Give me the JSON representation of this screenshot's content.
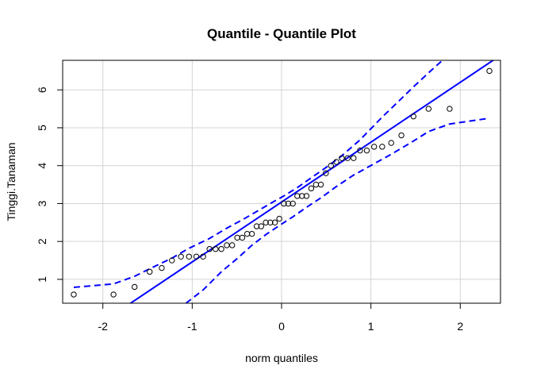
{
  "chart_data": {
    "type": "scatter",
    "title": "Quantile - Quantile Plot",
    "xlabel": "norm quantiles",
    "ylabel": "Tinggi.Tanaman",
    "xlim": [
      -2.45,
      2.45
    ],
    "ylim": [
      0.37,
      6.78
    ],
    "xticks": [
      -2,
      -1,
      0,
      1,
      2
    ],
    "yticks": [
      1,
      2,
      3,
      4,
      5,
      6
    ],
    "grid": true,
    "colors": {
      "reference": "#0000ff",
      "points": "#000000",
      "grid": "#d3d3d3"
    },
    "points": {
      "x": [
        -2.326,
        -1.881,
        -1.645,
        -1.476,
        -1.341,
        -1.227,
        -1.126,
        -1.036,
        -0.954,
        -0.878,
        -0.806,
        -0.739,
        -0.674,
        -0.613,
        -0.553,
        -0.496,
        -0.44,
        -0.385,
        -0.332,
        -0.279,
        -0.228,
        -0.176,
        -0.126,
        -0.075,
        -0.025,
        0.025,
        0.075,
        0.126,
        0.176,
        0.228,
        0.279,
        0.332,
        0.385,
        0.44,
        0.496,
        0.553,
        0.613,
        0.674,
        0.739,
        0.806,
        0.878,
        0.954,
        1.036,
        1.126,
        1.227,
        1.341,
        1.476,
        1.645,
        1.881,
        2.326
      ],
      "y": [
        0.6,
        0.6,
        0.8,
        1.2,
        1.3,
        1.5,
        1.6,
        1.6,
        1.6,
        1.6,
        1.8,
        1.8,
        1.8,
        1.9,
        1.9,
        2.1,
        2.1,
        2.2,
        2.2,
        2.4,
        2.4,
        2.5,
        2.5,
        2.5,
        2.6,
        3.0,
        3.0,
        3.0,
        3.2,
        3.2,
        3.2,
        3.4,
        3.5,
        3.5,
        3.8,
        4.0,
        4.1,
        4.2,
        4.2,
        4.2,
        4.4,
        4.4,
        4.5,
        4.5,
        4.6,
        4.8,
        5.3,
        5.5,
        5.5,
        6.5
      ]
    },
    "reference_line": {
      "intercept": 3.04,
      "slope": 1.58
    },
    "confidence_upper": {
      "x": [
        -2.326,
        -1.881,
        -1.645,
        -1.476,
        -1.227,
        -1.036,
        -0.806,
        -0.613,
        -0.44,
        -0.279,
        -0.126,
        0.025,
        0.176,
        0.332,
        0.496,
        0.674,
        0.878,
        1.126,
        1.341,
        1.476,
        1.645,
        1.8
      ],
      "y": [
        0.79,
        0.88,
        1.08,
        1.28,
        1.56,
        1.82,
        2.08,
        2.35,
        2.57,
        2.79,
        3.0,
        3.2,
        3.42,
        3.68,
        3.95,
        4.26,
        4.68,
        5.28,
        5.77,
        6.08,
        6.45,
        6.78
      ]
    },
    "confidence_lower": {
      "x": [
        -1.07,
        -0.878,
        -0.674,
        -0.496,
        -0.332,
        -0.176,
        -0.025,
        0.126,
        0.279,
        0.44,
        0.613,
        0.806,
        1.036,
        1.227,
        1.476,
        1.645,
        1.881,
        2.326
      ],
      "y": [
        0.37,
        0.72,
        1.2,
        1.55,
        1.9,
        2.18,
        2.42,
        2.65,
        2.9,
        3.15,
        3.45,
        3.75,
        4.05,
        4.3,
        4.65,
        4.9,
        5.1,
        5.25
      ]
    }
  }
}
